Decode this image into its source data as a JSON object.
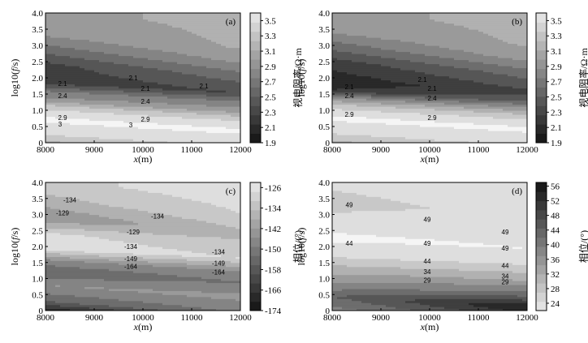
{
  "figure": {
    "description_label": "four-panel magnetotelluric contour figure"
  },
  "chart_data": [
    {
      "type": "heatmap",
      "panel": "(a)",
      "xlabel_italic": "x",
      "xlabel_unit": "(m)",
      "ylabel_prefix": "log10(",
      "ylabel_italic": "f",
      "ylabel_suffix": "/s)",
      "x_range": [
        8000,
        12000
      ],
      "y_range": [
        0,
        4
      ],
      "x_ticks": [
        "8000",
        "9000",
        "10000",
        "11000",
        "12000"
      ],
      "y_ticks": [
        "0",
        "0.5",
        "1.0",
        "1.5",
        "2.0",
        "2.5",
        "3.0",
        "3.5",
        "4.0"
      ],
      "colorbar": {
        "label": "视电阻率/Ω·m",
        "range": [
          1.9,
          3.6
        ],
        "reverse": false,
        "ticks": [
          "1.9",
          "2.1",
          "2.3",
          "2.5",
          "2.7",
          "2.9",
          "3.1",
          "3.3",
          "3.5"
        ]
      },
      "contour_labels": [
        {
          "text": "2.1",
          "x": 8350,
          "y": 1.83
        },
        {
          "text": "2.4",
          "x": 8350,
          "y": 1.45
        },
        {
          "text": "2.9",
          "x": 8350,
          "y": 0.78
        },
        {
          "text": "3",
          "x": 8300,
          "y": 0.58
        },
        {
          "text": "2.1",
          "x": 9800,
          "y": 2.0
        },
        {
          "text": "2.1",
          "x": 10050,
          "y": 1.68
        },
        {
          "text": "2.4",
          "x": 10050,
          "y": 1.28
        },
        {
          "text": "2.9",
          "x": 10050,
          "y": 0.72
        },
        {
          "text": "3",
          "x": 9750,
          "y": 0.55
        },
        {
          "text": "2.1",
          "x": 11250,
          "y": 1.75
        }
      ]
    },
    {
      "type": "heatmap",
      "panel": "(b)",
      "xlabel_italic": "x",
      "xlabel_unit": "(m)",
      "ylabel_prefix": "log10(",
      "ylabel_italic": "f",
      "ylabel_suffix": "/s)",
      "x_range": [
        8000,
        12000
      ],
      "y_range": [
        0,
        4
      ],
      "x_ticks": [
        "8000",
        "9000",
        "10000",
        "11000",
        "12000"
      ],
      "y_ticks": [
        "0",
        "0.5",
        "1.0",
        "1.5",
        "2.0",
        "2.5",
        "3.0",
        "3.5",
        "4.0"
      ],
      "colorbar": {
        "label": "视电阻率/Ω·m",
        "range": [
          1.9,
          3.6
        ],
        "reverse": false,
        "ticks": [
          "1.9",
          "2.1",
          "2.3",
          "2.5",
          "2.7",
          "2.9",
          "3.1",
          "3.3",
          "3.5"
        ]
      },
      "contour_labels": [
        {
          "text": "2.1",
          "x": 8350,
          "y": 1.72
        },
        {
          "text": "2.4",
          "x": 8350,
          "y": 1.45
        },
        {
          "text": "2.9",
          "x": 8350,
          "y": 0.88
        },
        {
          "text": "2.1",
          "x": 9850,
          "y": 1.95
        },
        {
          "text": "2.1",
          "x": 10050,
          "y": 1.68
        },
        {
          "text": "2.4",
          "x": 10050,
          "y": 1.38
        },
        {
          "text": "2.9",
          "x": 10050,
          "y": 0.78
        }
      ]
    },
    {
      "type": "heatmap",
      "panel": "(c)",
      "xlabel_italic": "x",
      "xlabel_unit": "(m)",
      "ylabel_prefix": "log10(",
      "ylabel_italic": "f",
      "ylabel_suffix": "/s)",
      "x_range": [
        8000,
        12000
      ],
      "y_range": [
        0,
        4
      ],
      "x_ticks": [
        "8000",
        "9000",
        "10000",
        "11000",
        "12000"
      ],
      "y_ticks": [
        "0",
        "0.5",
        "1.0",
        "1.5",
        "2.0",
        "2.5",
        "3.0",
        "3.5",
        "4.0"
      ],
      "colorbar": {
        "label": "相位/(°)",
        "range": [
          -174,
          -124
        ],
        "reverse": false,
        "ticks": [
          "-174",
          "-166",
          "-158",
          "-150",
          "-142",
          "-134",
          "-126"
        ]
      },
      "contour_labels": [
        {
          "text": "-134",
          "x": 8500,
          "y": 3.45
        },
        {
          "text": "-129",
          "x": 8350,
          "y": 3.05
        },
        {
          "text": "-134",
          "x": 10300,
          "y": 2.95
        },
        {
          "text": "-129",
          "x": 9800,
          "y": 2.45
        },
        {
          "text": "-134",
          "x": 9750,
          "y": 2.0
        },
        {
          "text": "-149",
          "x": 9750,
          "y": 1.62
        },
        {
          "text": "-164",
          "x": 9750,
          "y": 1.38
        },
        {
          "text": "-134",
          "x": 11550,
          "y": 1.83
        },
        {
          "text": "-149",
          "x": 11550,
          "y": 1.48
        },
        {
          "text": "-164",
          "x": 11550,
          "y": 1.2
        }
      ]
    },
    {
      "type": "heatmap",
      "panel": "(d)",
      "xlabel_italic": "x",
      "xlabel_unit": "(m)",
      "ylabel_prefix": "log10(",
      "ylabel_italic": "f",
      "ylabel_suffix": "/s)",
      "x_range": [
        8000,
        12000
      ],
      "y_range": [
        0,
        4
      ],
      "x_ticks": [
        "8000",
        "9000",
        "10000",
        "11000",
        "12000"
      ],
      "y_ticks": [
        "0",
        "0.5",
        "1.0",
        "1.5",
        "2.0",
        "2.5",
        "3.0",
        "3.5",
        "4.0"
      ],
      "colorbar": {
        "label": "相位/(°)",
        "range": [
          22,
          57
        ],
        "reverse": true,
        "ticks": [
          "24",
          "28",
          "32",
          "36",
          "40",
          "44",
          "48",
          "52",
          "56"
        ]
      },
      "contour_labels": [
        {
          "text": "49",
          "x": 8350,
          "y": 3.3
        },
        {
          "text": "44",
          "x": 8350,
          "y": 2.1
        },
        {
          "text": "49",
          "x": 9950,
          "y": 2.85
        },
        {
          "text": "49",
          "x": 9950,
          "y": 2.1
        },
        {
          "text": "44",
          "x": 9950,
          "y": 1.55
        },
        {
          "text": "34",
          "x": 9950,
          "y": 1.22
        },
        {
          "text": "29",
          "x": 9950,
          "y": 0.95
        },
        {
          "text": "49",
          "x": 11550,
          "y": 2.45
        },
        {
          "text": "49",
          "x": 11550,
          "y": 1.95
        },
        {
          "text": "44",
          "x": 11550,
          "y": 1.4
        },
        {
          "text": "34",
          "x": 11550,
          "y": 1.08
        },
        {
          "text": "29",
          "x": 11550,
          "y": 0.9
        }
      ]
    }
  ]
}
